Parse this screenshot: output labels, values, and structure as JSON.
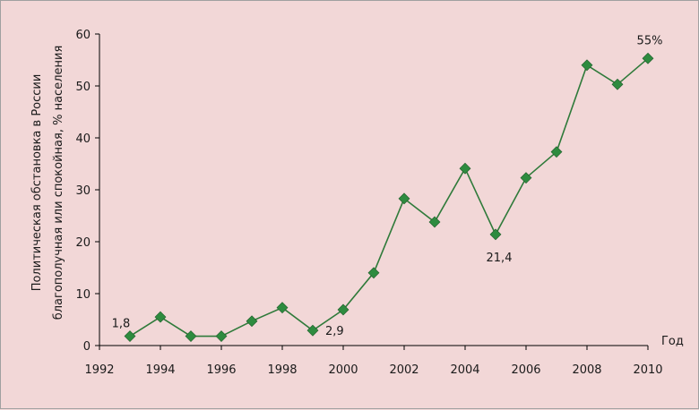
{
  "chart_data": {
    "type": "line",
    "title": "",
    "xlabel": "Год",
    "ylabel_line1": "Политическая обстановка в России",
    "ylabel_line2": "благополучная или спокойная, % населения",
    "xlim": [
      1992,
      2010
    ],
    "ylim": [
      0,
      60
    ],
    "x_ticks": [
      "1992",
      "1994",
      "1996",
      "1998",
      "2000",
      "2002",
      "2004",
      "2006",
      "2008",
      "2010"
    ],
    "y_ticks": [
      "0",
      "10",
      "20",
      "30",
      "40",
      "50",
      "60"
    ],
    "grid": false,
    "series_color": "#2f7a3a",
    "marker_color": "#2e8b3f",
    "series": [
      {
        "x": [
          1993,
          1994,
          1995,
          1996,
          1997,
          1998,
          1999,
          2000,
          2001,
          2002,
          2003,
          2004,
          2005,
          2006,
          2007,
          2008,
          2009,
          2010
        ],
        "values": [
          1.8,
          5.5,
          1.8,
          1.8,
          4.7,
          7.3,
          2.9,
          6.9,
          14.0,
          28.3,
          23.8,
          34.1,
          21.4,
          32.3,
          37.3,
          54.0,
          50.3,
          55.3
        ]
      }
    ],
    "annotations": [
      {
        "text": "1,8",
        "x": 1993,
        "y": 1.8
      },
      {
        "text": "2,9",
        "x": 1999,
        "y": 2.9
      },
      {
        "text": "21,4",
        "x": 2005,
        "y": 21.4
      },
      {
        "text": "55%",
        "x": 2010,
        "y": 55.3
      }
    ]
  }
}
